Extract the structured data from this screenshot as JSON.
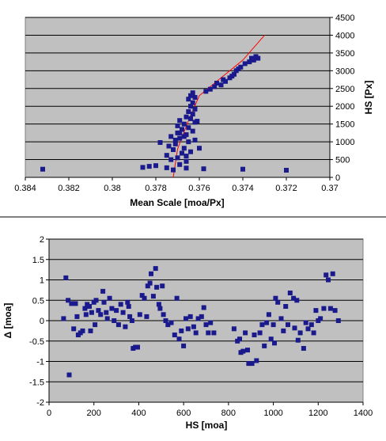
{
  "chart_data": [
    {
      "type": "scatter",
      "title": "",
      "xlabel": "Mean Scale [moa/Px]",
      "ylabel": "HS [Px]",
      "x_reversed": true,
      "xlim": [
        0.37,
        0.384
      ],
      "ylim": [
        0,
        4500
      ],
      "xticks": [
        0.384,
        0.382,
        0.38,
        0.378,
        0.376,
        0.374,
        0.372,
        0.37
      ],
      "xtick_labels": [
        "0.384",
        "0.382",
        "0.38",
        "0.378",
        "0.376",
        "0.374",
        "0.372",
        "0.37"
      ],
      "yticks": [
        0,
        500,
        1000,
        1500,
        2000,
        2500,
        3000,
        3500,
        4000,
        4500
      ],
      "ytick_labels": [
        "0",
        "500",
        "1000",
        "1500",
        "2000",
        "2500",
        "3000",
        "3500",
        "4000",
        "4500"
      ],
      "grid": true,
      "y_axis_side": "right",
      "plot_background": "#c0c0c0",
      "marker_color": "#1a1a8c",
      "fit_line_color": "#ff0000",
      "series": [
        {
          "points": [
            [
              0.3832,
              230
            ],
            [
              0.3786,
              280
            ],
            [
              0.3783,
              310
            ],
            [
              0.378,
              330
            ],
            [
              0.3775,
              270
            ],
            [
              0.3766,
              260
            ],
            [
              0.3758,
              240
            ],
            [
              0.374,
              230
            ],
            [
              0.372,
              200
            ],
            [
              0.3772,
              210
            ],
            [
              0.3769,
              360
            ],
            [
              0.3766,
              450
            ],
            [
              0.377,
              550
            ],
            [
              0.3775,
              620
            ],
            [
              0.3768,
              680
            ],
            [
              0.3764,
              720
            ],
            [
              0.3772,
              780
            ],
            [
              0.3767,
              820
            ],
            [
              0.3774,
              880
            ],
            [
              0.3771,
              940
            ],
            [
              0.3778,
              980
            ],
            [
              0.3765,
              1000
            ],
            [
              0.3762,
              1050
            ],
            [
              0.3769,
              1100
            ],
            [
              0.3773,
              1150
            ],
            [
              0.3766,
              1200
            ],
            [
              0.377,
              1250
            ],
            [
              0.3763,
              1300
            ],
            [
              0.3768,
              1350
            ],
            [
              0.3765,
              1400
            ],
            [
              0.377,
              1450
            ],
            [
              0.3767,
              1500
            ],
            [
              0.3762,
              1550
            ],
            [
              0.3769,
              1600
            ],
            [
              0.3764,
              1650
            ],
            [
              0.3766,
              1700
            ],
            [
              0.3763,
              1780
            ],
            [
              0.3765,
              1850
            ],
            [
              0.3762,
              1920
            ],
            [
              0.3764,
              2000
            ],
            [
              0.3763,
              2100
            ],
            [
              0.3765,
              2200
            ],
            [
              0.3762,
              2250
            ],
            [
              0.3764,
              2300
            ],
            [
              0.3763,
              2380
            ],
            [
              0.3757,
              2420
            ],
            [
              0.3755,
              2480
            ],
            [
              0.3753,
              2550
            ],
            [
              0.375,
              2600
            ],
            [
              0.3752,
              2650
            ],
            [
              0.3748,
              2700
            ],
            [
              0.3746,
              2800
            ],
            [
              0.3744,
              2900
            ],
            [
              0.3743,
              3000
            ],
            [
              0.3741,
              3100
            ],
            [
              0.3739,
              3200
            ],
            [
              0.3737,
              3250
            ],
            [
              0.3735,
              3300
            ],
            [
              0.3736,
              3350
            ],
            [
              0.3734,
              3400
            ],
            [
              0.3733,
              3350
            ],
            [
              0.3745,
              2850
            ],
            [
              0.3742,
              3050
            ],
            [
              0.3749,
              2750
            ],
            [
              0.3769,
              1250
            ],
            [
              0.3767,
              1150
            ],
            [
              0.3771,
              1050
            ],
            [
              0.3766,
              600
            ],
            [
              0.3773,
              500
            ],
            [
              0.376,
              820
            ],
            [
              0.3761,
              1580
            ]
          ]
        }
      ],
      "fit_line": [
        [
          0.3772,
          0
        ],
        [
          0.377,
          800
        ],
        [
          0.3765,
          1600
        ],
        [
          0.376,
          2300
        ],
        [
          0.375,
          2800
        ],
        [
          0.374,
          3300
        ],
        [
          0.373,
          4000
        ]
      ]
    },
    {
      "type": "scatter",
      "title": "",
      "xlabel": "HS [moa]",
      "ylabel": "Δ [moa]",
      "xlim": [
        0,
        1400
      ],
      "ylim": [
        -2,
        2
      ],
      "xticks": [
        0,
        200,
        400,
        600,
        800,
        1000,
        1200,
        1400
      ],
      "xtick_labels": [
        "0",
        "200",
        "400",
        "600",
        "800",
        "1000",
        "1200",
        "1400"
      ],
      "yticks": [
        -2,
        -1.5,
        -1,
        -0.5,
        0,
        0.5,
        1,
        1.5,
        2
      ],
      "ytick_labels": [
        "-2",
        "-1.5",
        "-1",
        "-0.5",
        "0",
        "0.5",
        "1",
        "1.5",
        "2"
      ],
      "grid": true,
      "y_axis_side": "left",
      "plot_background": "#c0c0c0",
      "marker_color": "#1a1a8c",
      "series": [
        {
          "points": [
            [
              65,
              0.05
            ],
            [
              75,
              1.05
            ],
            [
              85,
              0.5
            ],
            [
              90,
              -1.33
            ],
            [
              100,
              0.42
            ],
            [
              110,
              -0.2
            ],
            [
              118,
              0.42
            ],
            [
              125,
              0.1
            ],
            [
              130,
              -0.35
            ],
            [
              140,
              -0.3
            ],
            [
              150,
              -0.25
            ],
            [
              160,
              0.3
            ],
            [
              165,
              0.15
            ],
            [
              170,
              0.4
            ],
            [
              180,
              0.35
            ],
            [
              185,
              -0.25
            ],
            [
              190,
              0.2
            ],
            [
              200,
              0.45
            ],
            [
              205,
              -0.1
            ],
            [
              210,
              0.5
            ],
            [
              220,
              0.25
            ],
            [
              230,
              0.15
            ],
            [
              240,
              0.72
            ],
            [
              245,
              0.45
            ],
            [
              255,
              0.2
            ],
            [
              260,
              0.05
            ],
            [
              270,
              0.55
            ],
            [
              280,
              0.3
            ],
            [
              290,
              0.0
            ],
            [
              300,
              0.25
            ],
            [
              310,
              -0.1
            ],
            [
              320,
              0.4
            ],
            [
              330,
              0.2
            ],
            [
              340,
              -0.15
            ],
            [
              350,
              0.45
            ],
            [
              355,
              0.35
            ],
            [
              360,
              0.1
            ],
            [
              370,
              0.0
            ],
            [
              375,
              -0.68
            ],
            [
              385,
              -0.65
            ],
            [
              395,
              -0.65
            ],
            [
              405,
              0.15
            ],
            [
              415,
              0.62
            ],
            [
              425,
              0.55
            ],
            [
              435,
              0.1
            ],
            [
              440,
              0.85
            ],
            [
              450,
              0.92
            ],
            [
              455,
              1.15
            ],
            [
              465,
              0.6
            ],
            [
              475,
              1.28
            ],
            [
              480,
              0.82
            ],
            [
              490,
              0.4
            ],
            [
              495,
              0.3
            ],
            [
              505,
              0.85
            ],
            [
              510,
              0.15
            ],
            [
              520,
              0.0
            ],
            [
              530,
              -0.1
            ],
            [
              545,
              -0.05
            ],
            [
              560,
              -0.35
            ],
            [
              570,
              0.55
            ],
            [
              580,
              -0.45
            ],
            [
              590,
              -0.25
            ],
            [
              600,
              -0.62
            ],
            [
              610,
              0.05
            ],
            [
              620,
              -0.2
            ],
            [
              630,
              0.1
            ],
            [
              645,
              -0.15
            ],
            [
              655,
              -0.3
            ],
            [
              665,
              0.05
            ],
            [
              680,
              0.1
            ],
            [
              690,
              0.32
            ],
            [
              700,
              -0.1
            ],
            [
              710,
              -0.3
            ],
            [
              720,
              -0.05
            ],
            [
              735,
              -0.3
            ],
            [
              825,
              -0.2
            ],
            [
              840,
              -0.5
            ],
            [
              850,
              -0.45
            ],
            [
              855,
              -0.78
            ],
            [
              865,
              -0.75
            ],
            [
              875,
              -0.3
            ],
            [
              885,
              -0.72
            ],
            [
              890,
              -1.05
            ],
            [
              905,
              -1.05
            ],
            [
              915,
              -0.35
            ],
            [
              925,
              -0.98
            ],
            [
              940,
              -0.3
            ],
            [
              950,
              -0.1
            ],
            [
              960,
              -0.62
            ],
            [
              970,
              -0.05
            ],
            [
              980,
              0.15
            ],
            [
              990,
              -0.45
            ],
            [
              1000,
              -0.1
            ],
            [
              1005,
              -0.55
            ],
            [
              1010,
              0.55
            ],
            [
              1020,
              0.45
            ],
            [
              1035,
              0.05
            ],
            [
              1045,
              -0.25
            ],
            [
              1055,
              0.35
            ],
            [
              1065,
              -0.1
            ],
            [
              1075,
              0.68
            ],
            [
              1090,
              0.55
            ],
            [
              1095,
              -0.18
            ],
            [
              1105,
              0.5
            ],
            [
              1110,
              -0.48
            ],
            [
              1120,
              -0.3
            ],
            [
              1135,
              -0.68
            ],
            [
              1145,
              -0.05
            ],
            [
              1155,
              -0.2
            ],
            [
              1170,
              -0.1
            ],
            [
              1180,
              -0.3
            ],
            [
              1190,
              0.25
            ],
            [
              1200,
              0.0
            ],
            [
              1210,
              0.05
            ],
            [
              1225,
              0.3
            ],
            [
              1235,
              1.12
            ],
            [
              1245,
              1.0
            ],
            [
              1255,
              0.3
            ],
            [
              1265,
              1.15
            ],
            [
              1275,
              0.25
            ],
            [
              1290,
              0.0
            ]
          ]
        }
      ]
    }
  ]
}
